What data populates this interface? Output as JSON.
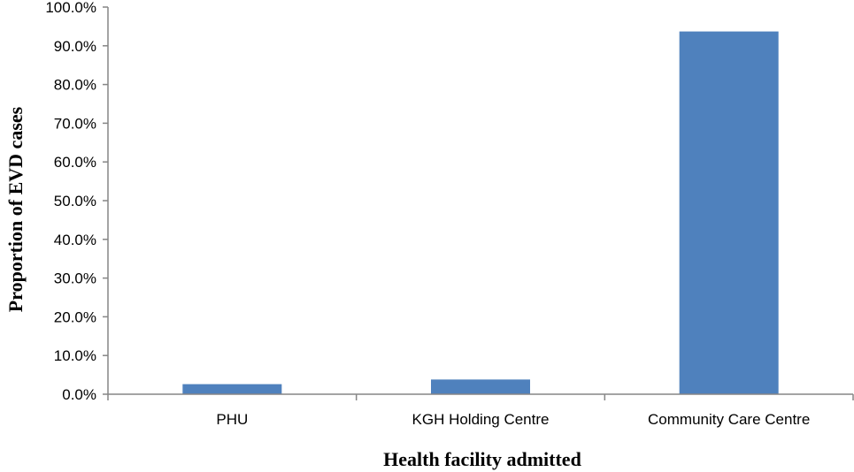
{
  "chart_data": {
    "type": "bar",
    "categories": [
      "PHU",
      "KGH Holding Centre",
      "Community Care Centre"
    ],
    "values": [
      2.6,
      3.8,
      93.7
    ],
    "xlabel": "Health facility admitted",
    "ylabel": "Proportion of EVD cases",
    "ylim": [
      0,
      100
    ],
    "yticks": [
      "0.0%",
      "10.0%",
      "20.0%",
      "30.0%",
      "40.0%",
      "50.0%",
      "60.0%",
      "70.0%",
      "80.0%",
      "90.0%",
      "100.0%"
    ],
    "ytick_values": [
      0,
      10,
      20,
      30,
      40,
      50,
      60,
      70,
      80,
      90,
      100
    ],
    "grid": false,
    "legend": "none",
    "colors": {
      "bar": "#4f81bd",
      "axis": "#868686"
    }
  }
}
